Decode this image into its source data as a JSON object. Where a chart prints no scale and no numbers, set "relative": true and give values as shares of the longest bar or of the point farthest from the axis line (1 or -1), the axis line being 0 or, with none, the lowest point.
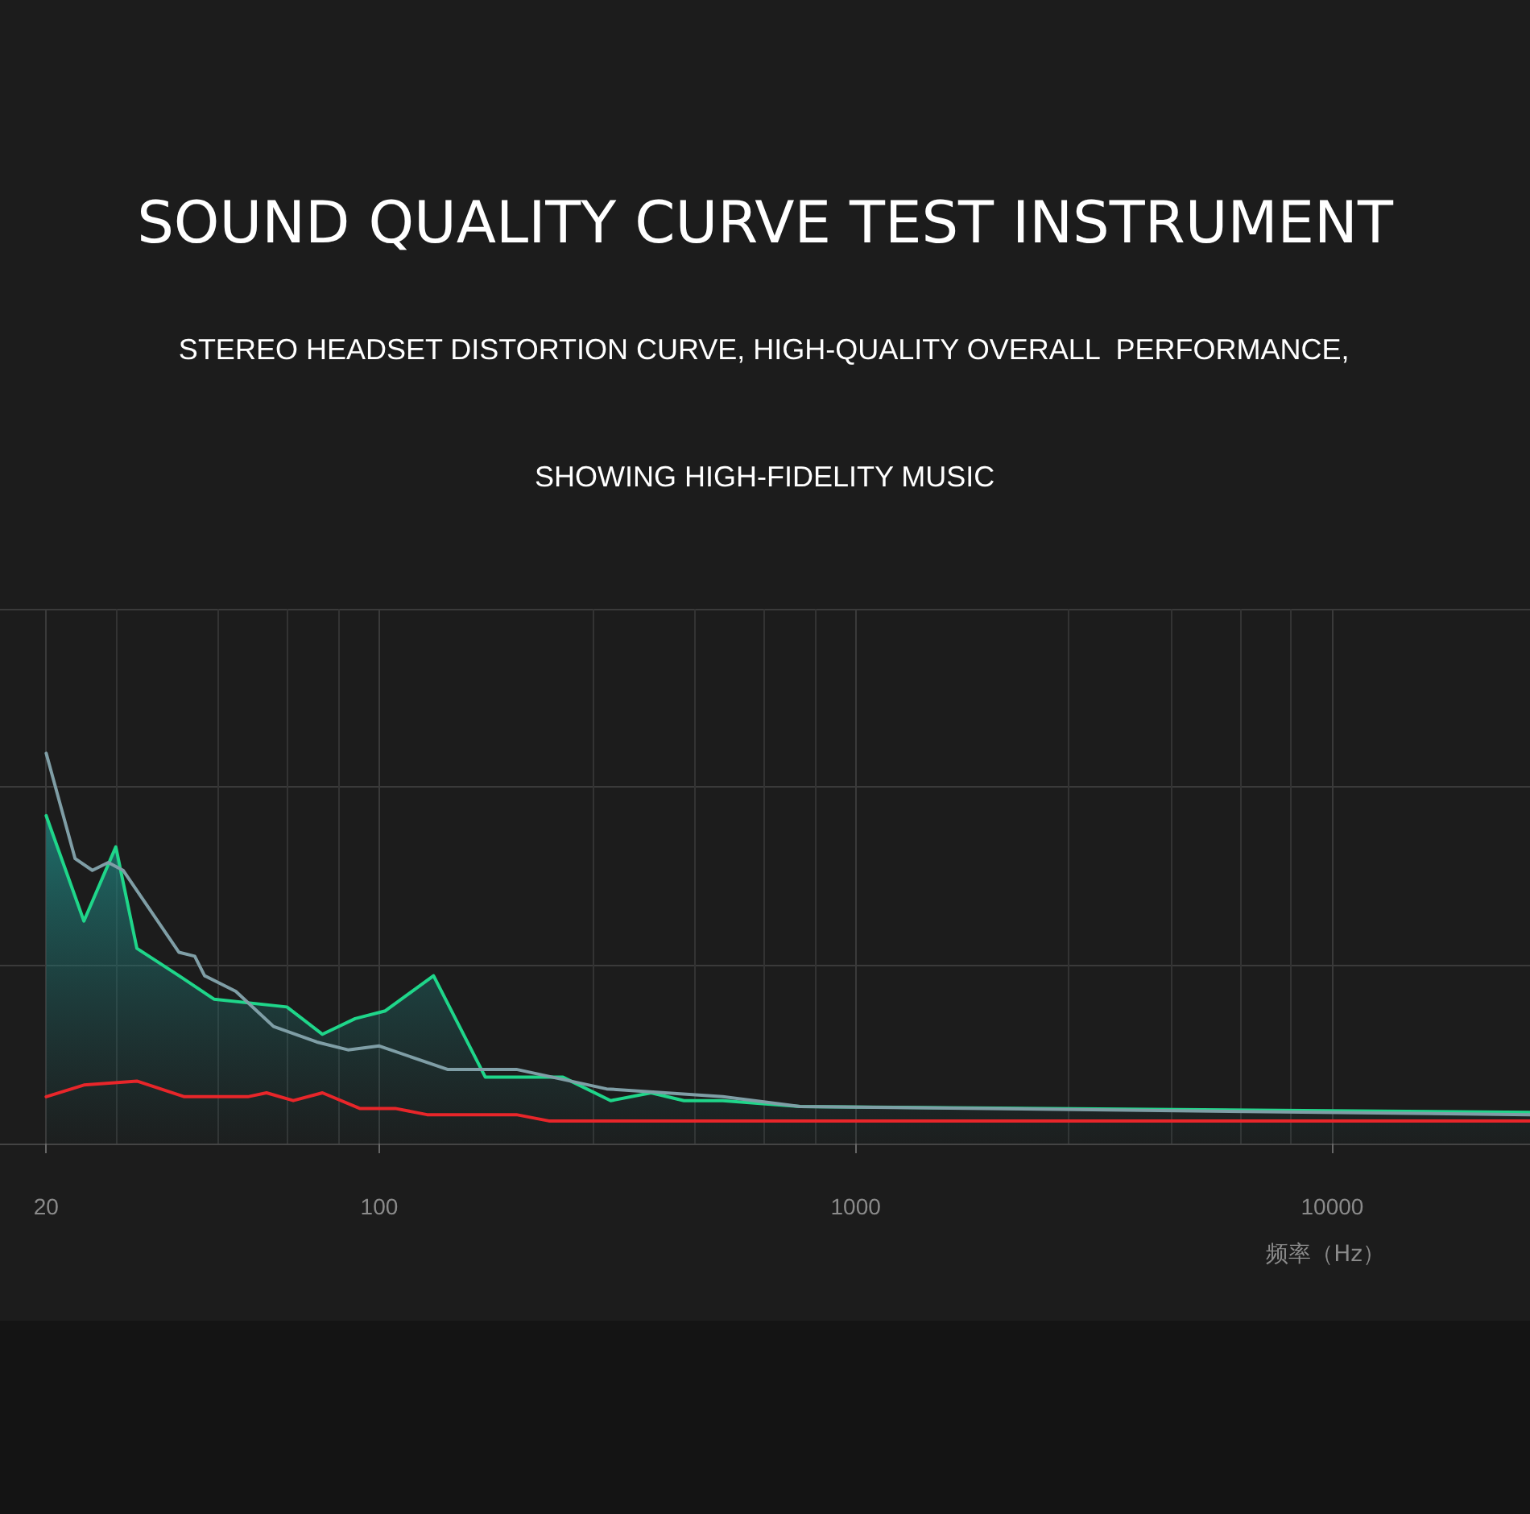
{
  "chart_data": {
    "type": "line",
    "title": "SOUND QUALITY CURVE TEST INSTRUMENT",
    "subtitle": "STEREO HEADSET DISTORTION CURVE, HIGH-QUALITY OVERALL  PERFORMANCE,\nSHOWING HIGH-FIDELITY MUSIC",
    "xlabel": "频率（Hz）",
    "log": "x",
    "relative": true,
    "grid": true,
    "marker": "none",
    "xlim": [
      16,
      26000
    ],
    "xticks": [
      20,
      100,
      1000,
      10000
    ],
    "series": [
      {
        "type": "area",
        "color": "#1fd68a",
        "x": [
          20,
          24,
          28,
          31,
          38,
          45,
          64,
          76,
          89,
          103,
          130,
          167,
          243,
          306,
          372,
          436,
          526,
          764,
          26000
        ],
        "values": [
          0.84,
          0.57,
          0.76,
          0.5,
          0.43,
          0.37,
          0.35,
          0.28,
          0.32,
          0.34,
          0.43,
          0.17,
          0.17,
          0.11,
          0.13,
          0.11,
          0.11,
          0.095,
          0.08
        ]
      },
      {
        "color": "#7f9ea6",
        "x": [
          20,
          23,
          25,
          27,
          29,
          38,
          41,
          43,
          50,
          60,
          74,
          86,
          100,
          139,
          194,
          300,
          526,
          764,
          26000
        ],
        "values": [
          1,
          0.73,
          0.7,
          0.72,
          0.7,
          0.49,
          0.48,
          0.43,
          0.39,
          0.3,
          0.26,
          0.24,
          0.25,
          0.19,
          0.19,
          0.14,
          0.12,
          0.095,
          0.074
        ]
      },
      {
        "color": "#e8262a",
        "x": [
          20,
          24,
          31,
          39,
          53,
          58,
          66,
          76,
          91,
          108,
          126,
          194,
          227,
          526,
          26000
        ],
        "values": [
          0.12,
          0.15,
          0.16,
          0.12,
          0.12,
          0.13,
          0.11,
          0.13,
          0.09,
          0.09,
          0.074,
          0.074,
          0.058,
          0.058,
          0.058
        ]
      }
    ]
  }
}
